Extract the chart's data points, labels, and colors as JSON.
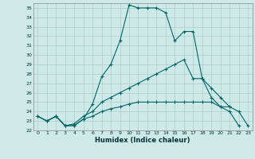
{
  "xlabel": "Humidex (Indice chaleur)",
  "bg_color": "#cfe9e9",
  "grid_color": "#aacccc",
  "line_color": "#006666",
  "xlim": [
    -0.5,
    23.5
  ],
  "ylim": [
    22,
    35.5
  ],
  "yticks": [
    22,
    23,
    24,
    25,
    26,
    27,
    28,
    29,
    30,
    31,
    32,
    33,
    34,
    35
  ],
  "xticks": [
    0,
    1,
    2,
    3,
    4,
    5,
    6,
    7,
    8,
    9,
    10,
    11,
    12,
    13,
    14,
    15,
    16,
    17,
    18,
    19,
    20,
    21,
    22,
    23
  ],
  "series1_x": [
    0,
    1,
    2,
    3,
    4,
    5,
    6,
    7,
    8,
    9,
    10,
    11,
    12,
    13,
    14,
    15,
    16,
    17,
    18,
    19,
    20,
    21,
    22
  ],
  "series1_y": [
    23.5,
    23.0,
    23.5,
    22.5,
    22.5,
    23.2,
    24.8,
    27.7,
    29.0,
    31.5,
    35.3,
    35.0,
    35.0,
    35.0,
    34.5,
    31.5,
    32.5,
    32.5,
    27.5,
    25.5,
    24.5,
    24.0,
    22.5
  ],
  "series2_x": [
    0,
    1,
    2,
    3,
    4,
    5,
    6,
    7,
    8,
    9,
    10,
    11,
    12,
    13,
    14,
    15,
    16,
    17,
    18,
    19,
    20,
    21
  ],
  "series2_y": [
    23.5,
    23.0,
    23.5,
    22.5,
    22.7,
    23.5,
    24.0,
    25.0,
    25.5,
    26.0,
    26.5,
    27.0,
    27.5,
    28.0,
    28.5,
    29.0,
    29.5,
    27.5,
    27.5,
    26.5,
    25.5,
    24.5
  ],
  "series3_x": [
    0,
    1,
    2,
    3,
    4,
    5,
    6,
    7,
    8,
    9,
    10,
    11,
    12,
    13,
    14,
    15,
    16,
    17,
    18,
    19,
    20,
    21,
    22,
    23
  ],
  "series3_y": [
    23.5,
    23.0,
    23.5,
    22.5,
    22.5,
    23.2,
    23.5,
    24.0,
    24.3,
    24.5,
    24.8,
    25.0,
    25.0,
    25.0,
    25.0,
    25.0,
    25.0,
    25.0,
    25.0,
    25.0,
    24.5,
    24.5,
    24.0,
    22.5
  ]
}
